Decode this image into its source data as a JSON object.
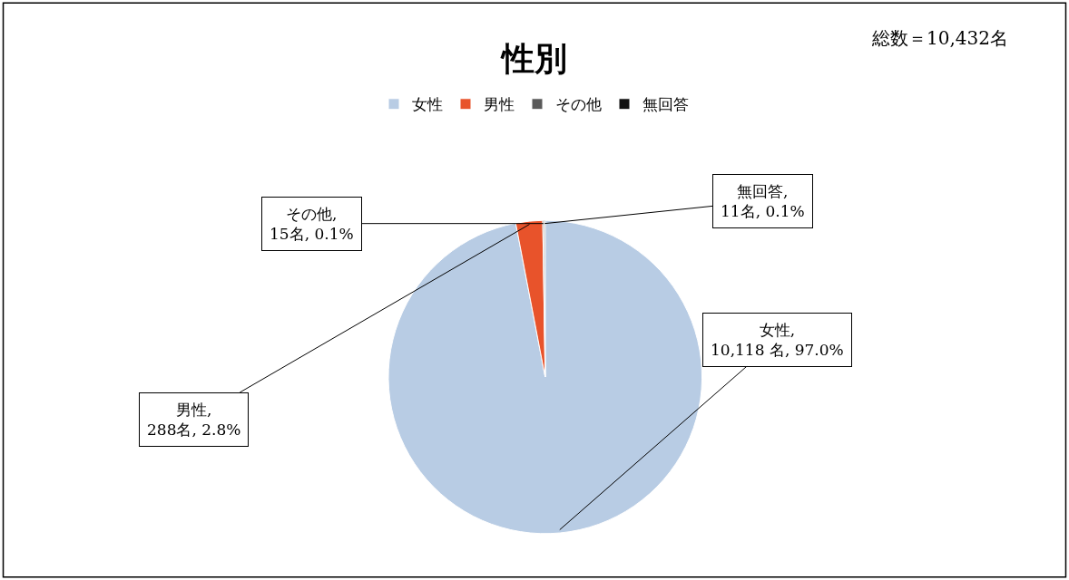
{
  "chart_data": {
    "type": "pie",
    "title": "性別",
    "categories": [
      "女性",
      "男性",
      "その他",
      "無回答"
    ],
    "values": [
      10118,
      288,
      15,
      11
    ],
    "colors": [
      "#b8cce4",
      "#e8532b",
      "#595959",
      "#111111"
    ],
    "value_labels": [
      "女性,\n10,118 名, 97.0%",
      "男性,\n288名, 2.8%",
      "その他,\n15名, 0.1%",
      "無回答,\n11名, 0.1%"
    ],
    "annotations": [
      "総数＝10,432名"
    ],
    "legend": "top"
  }
}
